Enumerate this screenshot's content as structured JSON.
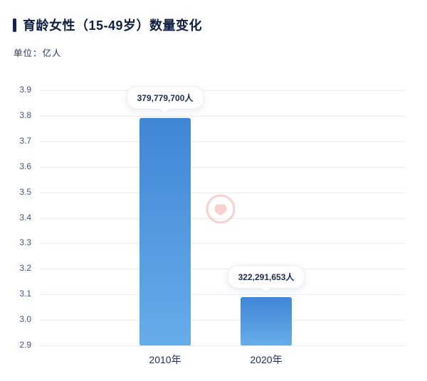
{
  "header": {
    "title": "育龄女性（15-49岁）数量变化",
    "unit_label": "单位：亿人"
  },
  "chart_data": {
    "type": "bar",
    "title": "育龄女性（15-49岁）数量变化",
    "unit": "亿人",
    "categories": [
      "2010年",
      "2020年"
    ],
    "values_persons": [
      379779700,
      322291653
    ],
    "values_yi": [
      3.798,
      3.223
    ],
    "value_labels": [
      "379,779,700人",
      "322,291,653人"
    ],
    "ylim": [
      2.9,
      3.9
    ],
    "ytick_labels": [
      "3.9",
      "3.8",
      "3.7",
      "3.6",
      "3.5",
      "3.4",
      "3.3",
      "3.2",
      "3.1",
      "3.0",
      "2.9"
    ],
    "grid": "horizontal",
    "legend": "none",
    "bar_color_top": "#3f86d6",
    "bar_color_bottom": "#66ade9",
    "rendered_bar_tops": [
      3.79,
      3.09
    ],
    "watermark_color": "#f0a3a3"
  }
}
